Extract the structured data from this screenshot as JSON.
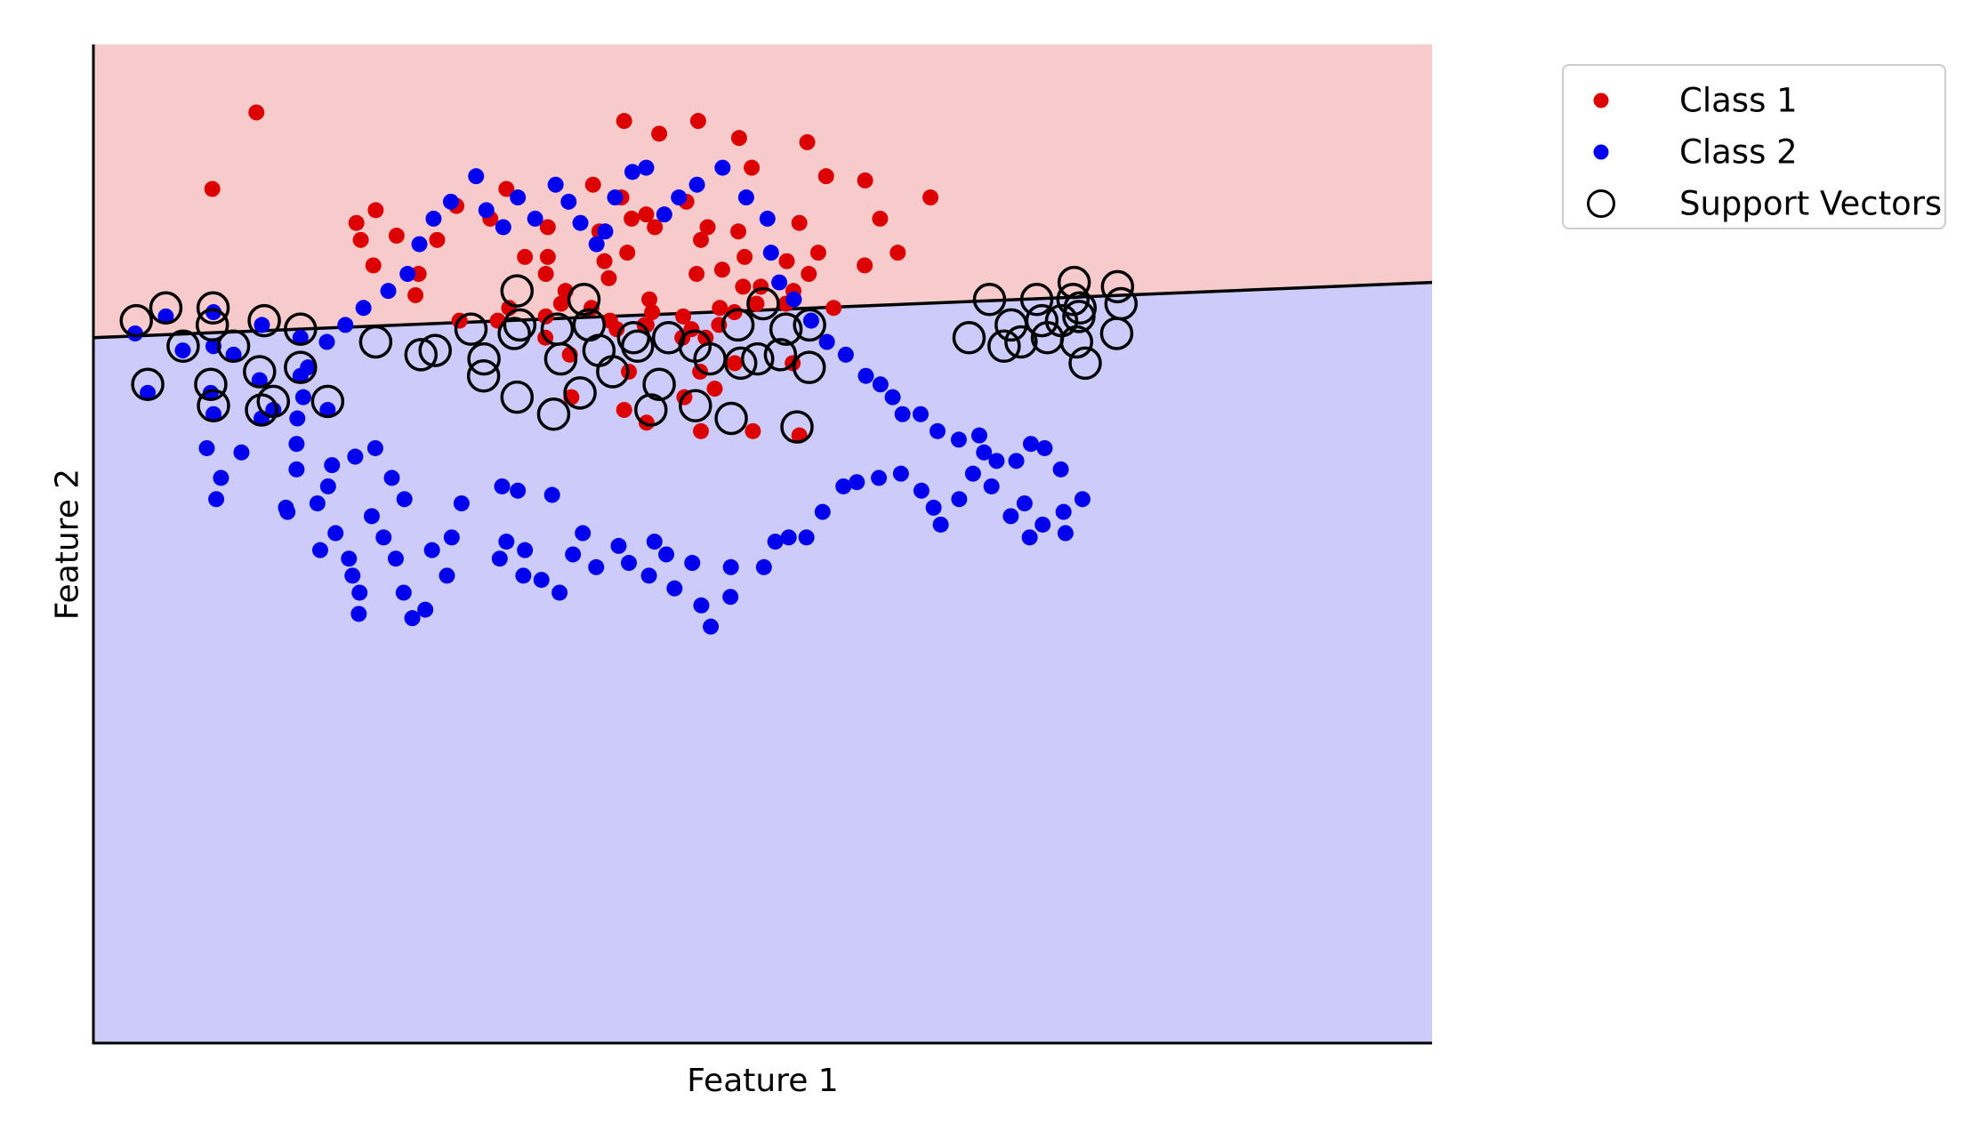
{
  "chart_data": {
    "type": "scatter",
    "title": "",
    "xlabel": "Feature 1",
    "ylabel": "Feature 2",
    "xlim": [
      -1.2,
      2.2
    ],
    "ylim": [
      -0.9,
      1.45
    ],
    "ticks": "none",
    "grid": false,
    "legend_placement": "outside-top-right",
    "decision_regions": {
      "upper_color": "#f7cbcc",
      "lower_color": "#cccbfa",
      "upper_class": "Class 1",
      "lower_class": "Class 2"
    },
    "decision_boundary": {
      "x": [
        -1.2,
        2.2
      ],
      "y": [
        0.76,
        0.89
      ]
    },
    "series": [
      {
        "name": "Class 1",
        "color": "#dd0000",
        "points": [
          [
            -0.786,
            1.29
          ],
          [
            -0.898,
            1.11
          ],
          [
            -0.327,
            0.99
          ],
          [
            -0.278,
            1.07
          ],
          [
            -0.151,
            1.11
          ],
          [
            -0.046,
            1.02
          ],
          [
            0.069,
            1.12
          ],
          [
            0.148,
            1.27
          ],
          [
            0.237,
            1.24
          ],
          [
            0.336,
            1.27
          ],
          [
            0.44,
            1.23
          ],
          [
            0.472,
            1.16
          ],
          [
            0.613,
            1.22
          ],
          [
            0.661,
            1.14
          ],
          [
            0.593,
            1.03
          ],
          [
            0.76,
            1.13
          ],
          [
            0.798,
            1.04
          ],
          [
            0.926,
            1.09
          ],
          [
            0.843,
            0.96
          ],
          [
            0.759,
            0.93
          ],
          [
            0.641,
            0.96
          ],
          [
            0.561,
            0.94
          ],
          [
            0.454,
            0.95
          ],
          [
            0.495,
            0.88
          ],
          [
            0.438,
            1.01
          ],
          [
            0.36,
            1.02
          ],
          [
            0.343,
            0.99
          ],
          [
            0.306,
            1.08
          ],
          [
            0.226,
            1.02
          ],
          [
            0.204,
            1.05
          ],
          [
            0.141,
            1.09
          ],
          [
            0.167,
            1.04
          ],
          [
            0.156,
            0.96
          ],
          [
            0.098,
            0.94
          ],
          [
            0.085,
            1.01
          ],
          [
            -0.046,
            0.95
          ],
          [
            -0.104,
            0.95
          ],
          [
            -0.051,
            0.91
          ],
          [
            -0.001,
            0.87
          ],
          [
            0.109,
            0.9
          ],
          [
            -0.374,
            0.91
          ],
          [
            -0.489,
            0.93
          ],
          [
            -0.521,
            0.99
          ],
          [
            -0.532,
            1.03
          ],
          [
            -0.483,
            1.06
          ],
          [
            -0.43,
            1.0
          ],
          [
            -0.192,
            1.04
          ],
          [
            0.212,
            0.85
          ],
          [
            0.332,
            0.91
          ],
          [
            0.397,
            0.92
          ],
          [
            0.45,
            0.88
          ],
          [
            0.617,
            0.91
          ],
          [
            0.68,
            0.83
          ],
          [
            0.298,
            0.81
          ],
          [
            0.219,
            0.82
          ],
          [
            -0.144,
            0.83
          ],
          [
            -0.051,
            0.81
          ],
          [
            -0.012,
            0.84
          ],
          [
            0.065,
            0.83
          ],
          [
            0.112,
            0.8
          ],
          [
            0.205,
            0.79
          ],
          [
            0.319,
            0.78
          ],
          [
            0.355,
            0.76
          ],
          [
            0.389,
            0.79
          ],
          [
            0.428,
            0.82
          ],
          [
            0.578,
            0.87
          ],
          [
            0.559,
            0.84
          ],
          [
            0.484,
            0.84
          ],
          [
            0.391,
            0.83
          ],
          [
            0.296,
            0.76
          ],
          [
            0.2,
            0.79
          ],
          [
            0.129,
            0.78
          ],
          [
            -0.173,
            0.8
          ],
          [
            -0.052,
            0.76
          ],
          [
            -0.382,
            0.86
          ],
          [
            -0.27,
            0.8
          ],
          [
            0.01,
            0.72
          ],
          [
            0.16,
            0.68
          ],
          [
            0.341,
            0.68
          ],
          [
            0.429,
            0.7
          ],
          [
            0.576,
            0.7
          ],
          [
            0.148,
            0.59
          ],
          [
            0.014,
            0.62
          ],
          [
            0.205,
            0.56
          ],
          [
            0.301,
            0.62
          ],
          [
            0.378,
            0.64
          ],
          [
            0.343,
            0.54
          ],
          [
            0.475,
            0.54
          ],
          [
            0.593,
            0.53
          ]
        ]
      },
      {
        "name": "Class 2",
        "color": "#0000ee",
        "points": [
          [
            -1.094,
            0.77
          ],
          [
            -1.016,
            0.81
          ],
          [
            -0.895,
            0.82
          ],
          [
            -0.895,
            0.74
          ],
          [
            -0.772,
            0.79
          ],
          [
            -0.674,
            0.76
          ],
          [
            -0.973,
            0.73
          ],
          [
            -0.844,
            0.72
          ],
          [
            -0.778,
            0.66
          ],
          [
            -0.674,
            0.67
          ],
          [
            -0.902,
            0.63
          ],
          [
            -0.743,
            0.59
          ],
          [
            -1.062,
            0.63
          ],
          [
            -0.773,
            0.57
          ],
          [
            -0.895,
            0.58
          ],
          [
            -0.605,
            0.59
          ],
          [
            -0.682,
            0.57
          ],
          [
            -0.912,
            0.5
          ],
          [
            -0.824,
            0.49
          ],
          [
            -0.876,
            0.43
          ],
          [
            -0.684,
            0.51
          ],
          [
            -0.604,
            0.41
          ],
          [
            -0.535,
            0.48
          ],
          [
            -0.484,
            0.5
          ],
          [
            -0.631,
            0.37
          ],
          [
            -0.684,
            0.45
          ],
          [
            -0.888,
            0.38
          ],
          [
            -0.707,
            0.35
          ],
          [
            -0.594,
            0.46
          ],
          [
            -0.711,
            0.36
          ],
          [
            -0.493,
            0.34
          ],
          [
            -0.442,
            0.43
          ],
          [
            -0.41,
            0.38
          ],
          [
            -0.463,
            0.29
          ],
          [
            -0.551,
            0.24
          ],
          [
            -0.585,
            0.3
          ],
          [
            -0.624,
            0.26
          ],
          [
            -0.542,
            0.2
          ],
          [
            -0.524,
            0.16
          ],
          [
            -0.526,
            0.11
          ],
          [
            -0.432,
            0.24
          ],
          [
            -0.412,
            0.16
          ],
          [
            -0.39,
            0.1
          ],
          [
            -0.357,
            0.12
          ],
          [
            -0.302,
            0.2
          ],
          [
            -0.34,
            0.26
          ],
          [
            -0.29,
            0.29
          ],
          [
            -0.265,
            0.37
          ],
          [
            -0.162,
            0.41
          ],
          [
            -0.122,
            0.4
          ],
          [
            -0.035,
            0.39
          ],
          [
            -0.104,
            0.26
          ],
          [
            -0.108,
            0.2
          ],
          [
            -0.168,
            0.24
          ],
          [
            -0.151,
            0.28
          ],
          [
            -0.062,
            0.19
          ],
          [
            -0.016,
            0.16
          ],
          [
            0.018,
            0.25
          ],
          [
            0.077,
            0.22
          ],
          [
            0.043,
            0.3
          ],
          [
            0.134,
            0.27
          ],
          [
            0.16,
            0.23
          ],
          [
            0.211,
            0.2
          ],
          [
            0.225,
            0.28
          ],
          [
            0.255,
            0.25
          ],
          [
            0.321,
            0.23
          ],
          [
            0.276,
            0.17
          ],
          [
            0.344,
            0.13
          ],
          [
            0.368,
            0.08
          ],
          [
            0.418,
            0.15
          ],
          [
            0.419,
            0.22
          ],
          [
            0.503,
            0.22
          ],
          [
            0.532,
            0.28
          ],
          [
            0.566,
            0.29
          ],
          [
            0.611,
            0.29
          ],
          [
            0.652,
            0.35
          ],
          [
            0.705,
            0.41
          ],
          [
            0.739,
            0.42
          ],
          [
            0.795,
            0.43
          ],
          [
            0.851,
            0.44
          ],
          [
            0.903,
            0.4
          ],
          [
            0.934,
            0.36
          ],
          [
            0.952,
            0.32
          ],
          [
            0.999,
            0.38
          ],
          [
            1.034,
            0.44
          ],
          [
            1.062,
            0.49
          ],
          [
            1.081,
            0.41
          ],
          [
            1.13,
            0.34
          ],
          [
            1.165,
            0.37
          ],
          [
            1.211,
            0.32
          ],
          [
            1.178,
            0.29
          ],
          [
            1.269,
            0.3
          ],
          [
            1.264,
            0.35
          ],
          [
            1.312,
            0.38
          ],
          [
            1.257,
            0.45
          ],
          [
            1.216,
            0.5
          ],
          [
            1.181,
            0.51
          ],
          [
            1.144,
            0.47
          ],
          [
            1.094,
            0.47
          ],
          [
            1.05,
            0.53
          ],
          [
            0.998,
            0.52
          ],
          [
            0.944,
            0.54
          ],
          [
            0.901,
            0.58
          ],
          [
            0.855,
            0.58
          ],
          [
            0.83,
            0.62
          ],
          [
            0.799,
            0.65
          ],
          [
            0.762,
            0.67
          ],
          [
            0.711,
            0.72
          ],
          [
            0.663,
            0.75
          ],
          [
            0.623,
            0.8
          ],
          [
            0.579,
            0.85
          ],
          [
            0.542,
            0.89
          ],
          [
            0.521,
            0.96
          ],
          [
            0.512,
            1.04
          ],
          [
            0.458,
            1.09
          ],
          [
            0.398,
            1.16
          ],
          [
            0.333,
            1.12
          ],
          [
            0.287,
            1.09
          ],
          [
            0.25,
            1.05
          ],
          [
            0.204,
            1.16
          ],
          [
            0.169,
            1.15
          ],
          [
            0.125,
            1.09
          ],
          [
            0.1,
            1.01
          ],
          [
            0.078,
            0.98
          ],
          [
            0.037,
            1.03
          ],
          [
            0.007,
            1.08
          ],
          [
            -0.026,
            1.12
          ],
          [
            -0.078,
            1.04
          ],
          [
            -0.122,
            1.09
          ],
          [
            -0.159,
            1.02
          ],
          [
            -0.202,
            1.06
          ],
          [
            -0.228,
            1.14
          ],
          [
            -0.292,
            1.08
          ],
          [
            -0.336,
            1.04
          ],
          [
            -0.372,
            0.98
          ],
          [
            -0.402,
            0.91
          ],
          [
            -0.451,
            0.87
          ],
          [
            -0.514,
            0.83
          ],
          [
            -0.56,
            0.79
          ],
          [
            -0.607,
            0.75
          ],
          [
            -0.655,
            0.69
          ],
          [
            -0.667,
            0.62
          ]
        ]
      }
    ],
    "support_vectors": [
      [
        -1.091,
        0.8
      ],
      [
        -1.016,
        0.83
      ],
      [
        -0.896,
        0.83
      ],
      [
        -0.898,
        0.79
      ],
      [
        -0.766,
        0.8
      ],
      [
        -0.674,
        0.78
      ],
      [
        -0.972,
        0.74
      ],
      [
        -0.844,
        0.74
      ],
      [
        -0.778,
        0.68
      ],
      [
        -0.674,
        0.69
      ],
      [
        -0.902,
        0.65
      ],
      [
        -0.743,
        0.61
      ],
      [
        -1.062,
        0.65
      ],
      [
        -0.773,
        0.59
      ],
      [
        -0.895,
        0.6
      ],
      [
        -0.605,
        0.61
      ],
      [
        -0.483,
        0.75
      ],
      [
        -0.332,
        0.73
      ],
      [
        -0.241,
        0.78
      ],
      [
        -0.131,
        0.77
      ],
      [
        -0.022,
        0.78
      ],
      [
        0.059,
        0.79
      ],
      [
        0.084,
        0.73
      ],
      [
        0.172,
        0.76
      ],
      [
        0.261,
        0.76
      ],
      [
        0.366,
        0.71
      ],
      [
        0.437,
        0.79
      ],
      [
        0.501,
        0.84
      ],
      [
        0.559,
        0.78
      ],
      [
        0.545,
        0.72
      ],
      [
        -0.208,
        0.71
      ],
      [
        -0.124,
        0.62
      ],
      [
        -0.013,
        0.71
      ],
      [
        0.036,
        0.63
      ],
      [
        0.119,
        0.68
      ],
      [
        0.182,
        0.74
      ],
      [
        0.237,
        0.65
      ],
      [
        0.329,
        0.6
      ],
      [
        0.328,
        0.74
      ],
      [
        0.444,
        0.7
      ],
      [
        0.619,
        0.79
      ],
      [
        0.618,
        0.69
      ],
      [
        0.487,
        0.71
      ],
      [
        -0.031,
        0.58
      ],
      [
        0.216,
        0.59
      ],
      [
        0.42,
        0.57
      ],
      [
        0.587,
        0.55
      ],
      [
        1.196,
        0.85
      ],
      [
        1.306,
        0.83
      ],
      [
        1.291,
        0.89
      ],
      [
        1.288,
        0.85
      ],
      [
        1.209,
        0.8
      ],
      [
        1.259,
        0.8
      ],
      [
        1.297,
        0.75
      ],
      [
        1.303,
        0.81
      ],
      [
        1.401,
        0.88
      ],
      [
        1.41,
        0.84
      ],
      [
        1.399,
        0.77
      ],
      [
        1.076,
        0.85
      ],
      [
        1.131,
        0.79
      ],
      [
        1.113,
        0.74
      ],
      [
        1.024,
        0.76
      ],
      [
        1.223,
        0.76
      ],
      [
        1.319,
        0.7
      ],
      [
        1.156,
        0.75
      ],
      [
        -0.368,
        0.72
      ],
      [
        -0.124,
        0.87
      ],
      [
        -0.209,
        0.67
      ],
      [
        -0.117,
        0.79
      ],
      [
        0.046,
        0.85
      ]
    ]
  },
  "legend": {
    "items": [
      {
        "label": "Class 1",
        "kind": "dot",
        "color": "#dd0000"
      },
      {
        "label": "Class 2",
        "kind": "dot",
        "color": "#0000ee"
      },
      {
        "label": "Support Vectors",
        "kind": "ring",
        "color": "#000000"
      }
    ]
  }
}
